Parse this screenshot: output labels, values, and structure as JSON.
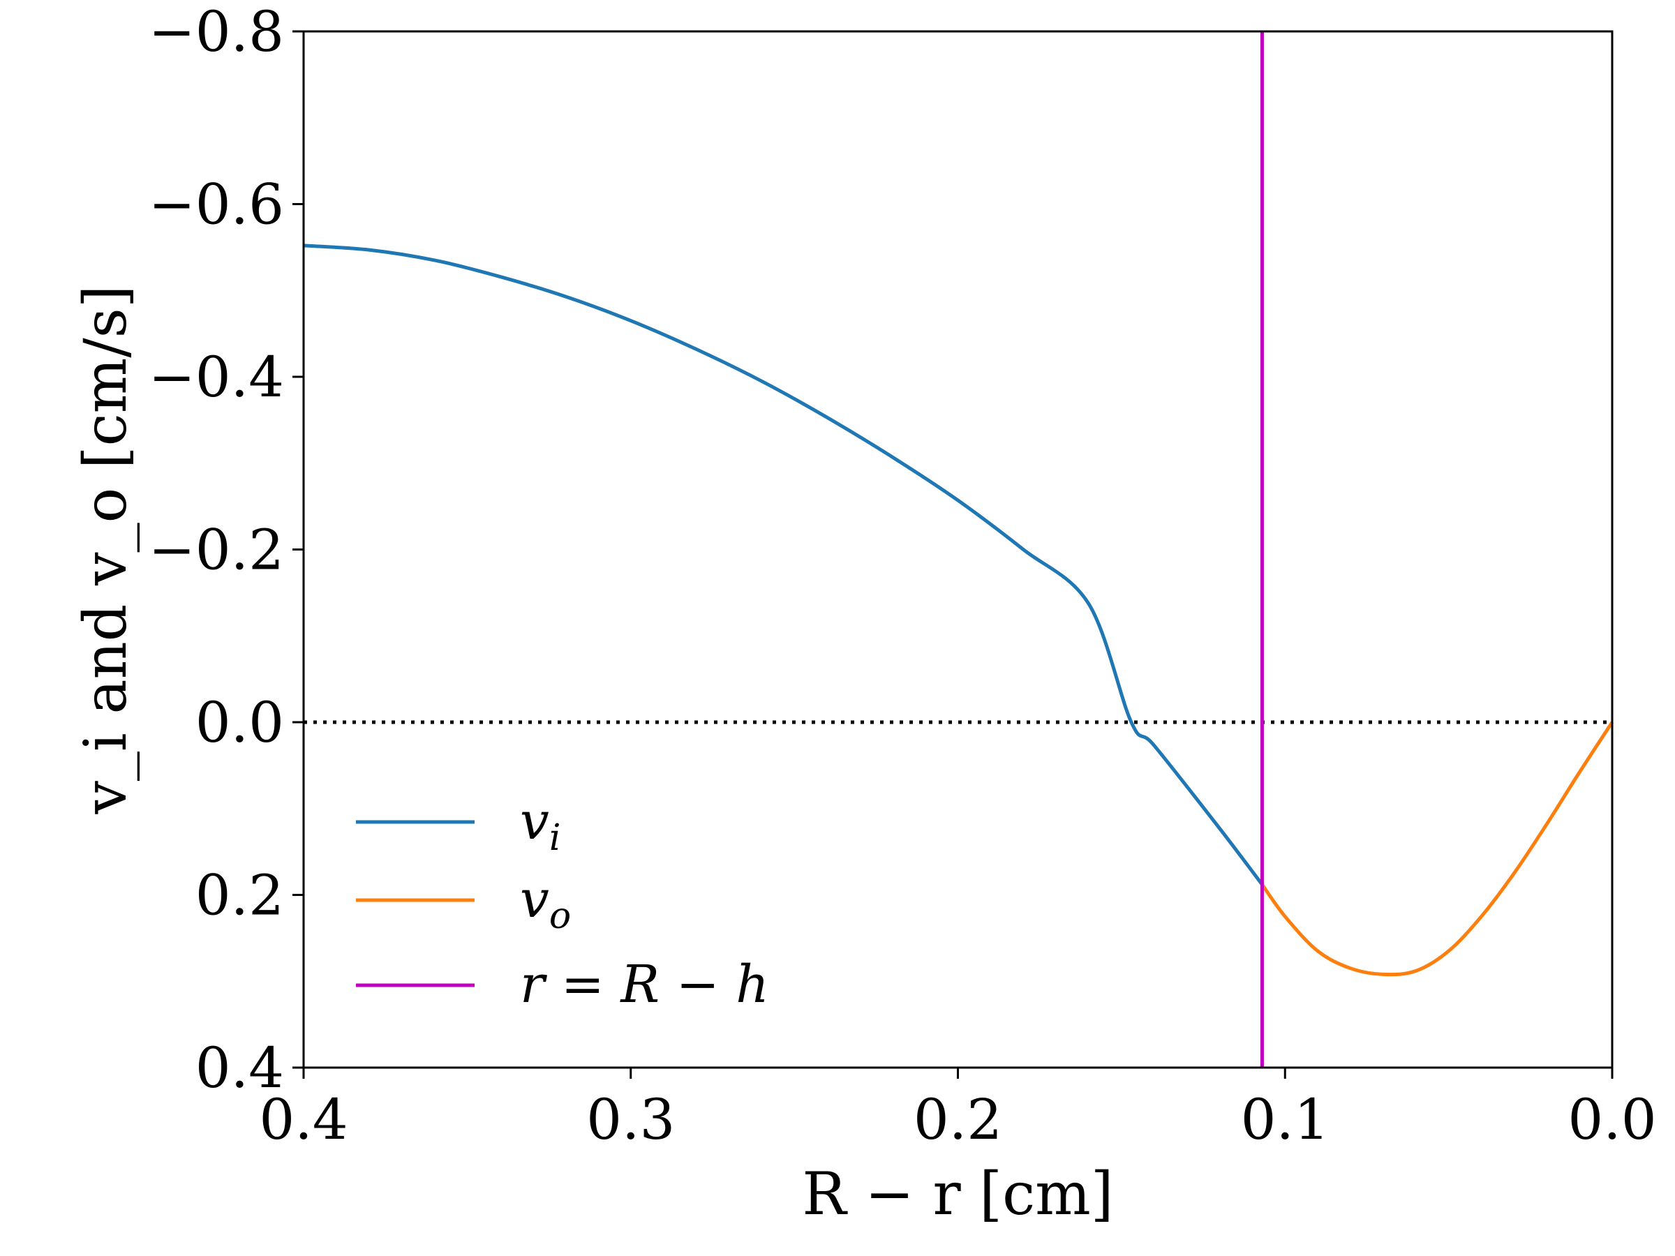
{
  "chart_data": {
    "type": "line",
    "xlabel": "R − r [cm]",
    "ylabel": "v_i and v_o [cm/s]",
    "xlim": [
      0.4,
      0.0
    ],
    "ylim": [
      0.4,
      -0.8
    ],
    "x_inverted": true,
    "y_inverted": true,
    "grid": false,
    "legend_position": "lower-left",
    "x_ticks": [
      {
        "value": 0.4,
        "label": "0.4"
      },
      {
        "value": 0.3,
        "label": "0.3"
      },
      {
        "value": 0.2,
        "label": "0.2"
      },
      {
        "value": 0.1,
        "label": "0.1"
      },
      {
        "value": 0.0,
        "label": "0.0"
      }
    ],
    "y_ticks": [
      {
        "value": -0.8,
        "label": "−0.8"
      },
      {
        "value": -0.6,
        "label": "−0.6"
      },
      {
        "value": -0.4,
        "label": "−0.4"
      },
      {
        "value": -0.2,
        "label": "−0.2"
      },
      {
        "value": 0.0,
        "label": "0.0"
      },
      {
        "value": 0.2,
        "label": "0.2"
      },
      {
        "value": 0.4,
        "label": "0.4"
      }
    ],
    "series": [
      {
        "name": "v_i",
        "legend_main": "v",
        "legend_sub": "i",
        "color": "#1f77b4",
        "x": [
          0.4,
          0.38,
          0.36,
          0.34,
          0.32,
          0.3,
          0.28,
          0.26,
          0.24,
          0.22,
          0.2,
          0.18,
          0.16,
          0.147,
          0.14,
          0.12,
          0.107
        ],
        "y": [
          -0.552,
          -0.547,
          -0.535,
          -0.516,
          -0.493,
          -0.465,
          -0.432,
          -0.395,
          -0.353,
          -0.307,
          -0.257,
          -0.2,
          -0.137,
          -0.0,
          0.027,
          0.123,
          0.188
        ]
      },
      {
        "name": "v_o",
        "legend_main": "v",
        "legend_sub": "o",
        "color": "#ff7f0e",
        "x": [
          0.107,
          0.1,
          0.09,
          0.08,
          0.07,
          0.06,
          0.05,
          0.04,
          0.03,
          0.02,
          0.01,
          0.0
        ],
        "y": [
          0.188,
          0.225,
          0.265,
          0.285,
          0.292,
          0.288,
          0.265,
          0.225,
          0.175,
          0.118,
          0.058,
          0.0
        ]
      },
      {
        "name": "r = R − h",
        "legend_text": "r = R − h",
        "color": "#bf00bf",
        "type": "vline",
        "x": 0.107
      }
    ],
    "reference_lines": [
      {
        "type": "hline",
        "y": 0.0,
        "style": "dotted",
        "color": "#000000"
      }
    ]
  }
}
